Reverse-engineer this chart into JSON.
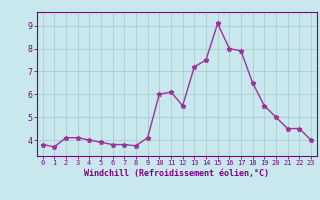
{
  "x": [
    0,
    1,
    2,
    3,
    4,
    5,
    6,
    7,
    8,
    9,
    10,
    11,
    12,
    13,
    14,
    15,
    16,
    17,
    18,
    19,
    20,
    21,
    22,
    23
  ],
  "y": [
    3.8,
    3.7,
    4.1,
    4.1,
    4.0,
    3.9,
    3.8,
    3.8,
    3.75,
    4.1,
    6.0,
    6.1,
    5.5,
    7.2,
    7.5,
    9.1,
    8.0,
    7.9,
    6.5,
    5.5,
    5.0,
    4.5,
    4.5,
    4.0
  ],
  "line_color": "#993399",
  "marker": "*",
  "background_color": "#c8e8ee",
  "grid_color": "#aacccc",
  "xlabel": "Windchill (Refroidissement éolien,°C)",
  "xlabel_color": "#800080",
  "tick_color": "#800080",
  "axis_color": "#800080",
  "xlim": [
    -0.5,
    23.5
  ],
  "ylim": [
    3.3,
    9.6
  ],
  "yticks": [
    4,
    5,
    6,
    7,
    8,
    9
  ],
  "xticks": [
    0,
    1,
    2,
    3,
    4,
    5,
    6,
    7,
    8,
    9,
    10,
    11,
    12,
    13,
    14,
    15,
    16,
    17,
    18,
    19,
    20,
    21,
    22,
    23
  ],
  "marker_size": 3.5,
  "line_width": 1.0
}
